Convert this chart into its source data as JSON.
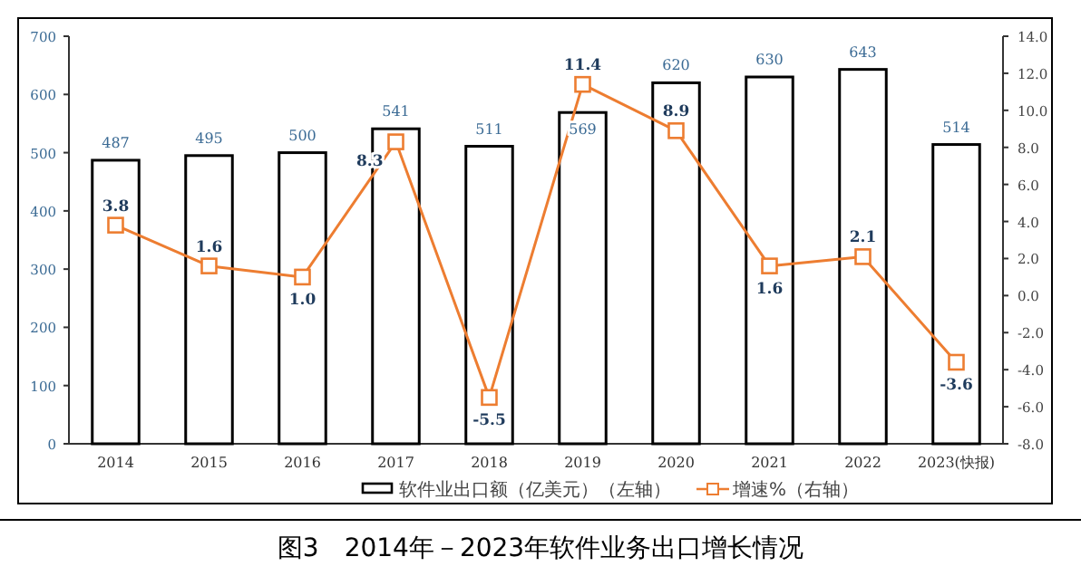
{
  "chart_data": {
    "type": "bar",
    "title": "图3　2014年－2023年软件业务出口增长情况",
    "categories": [
      "2014",
      "2015",
      "2016",
      "2017",
      "2018",
      "2019",
      "2020",
      "2021",
      "2022",
      "2023(快报)"
    ],
    "series": [
      {
        "name": "软件业出口额（亿美元）（左轴）",
        "color": "#ffffff",
        "values": [
          487,
          495,
          500,
          541,
          511,
          569,
          620,
          630,
          643,
          514
        ],
        "value_labels": [
          "487",
          "495",
          "500",
          "541",
          "511",
          "569",
          "620",
          "630",
          "643",
          "514"
        ]
      },
      {
        "name": "增速%（右轴）",
        "type": "line",
        "axis": "y2",
        "color": "#ed7d31",
        "marker": "square",
        "values": [
          3.8,
          1.6,
          1.0,
          8.3,
          -5.5,
          11.4,
          8.9,
          1.6,
          2.1,
          -3.6
        ],
        "value_labels": [
          "3.8",
          "1.6",
          "1.0",
          "8.3",
          "-5.5",
          "11.4",
          "8.9",
          "1.6",
          "2.1",
          "-3.6"
        ]
      }
    ],
    "ylim": [
      0,
      700
    ],
    "yticks": [
      0,
      100,
      200,
      300,
      400,
      500,
      600,
      700
    ],
    "y2lim": [
      -8,
      14
    ],
    "y2ticks": [
      {
        "value": -8,
        "label": "-8.0"
      },
      {
        "value": -6,
        "label": "-6.0"
      },
      {
        "value": -4,
        "label": "-4.0"
      },
      {
        "value": -2,
        "label": "-2.0"
      },
      {
        "value": 0,
        "label": "0.0"
      },
      {
        "value": 2,
        "label": "2.0"
      },
      {
        "value": 4,
        "label": "4.0"
      },
      {
        "value": 6,
        "label": "6.0"
      },
      {
        "value": 8,
        "label": "8.0"
      },
      {
        "value": 10,
        "label": "10.0"
      },
      {
        "value": 12,
        "label": "12.0"
      },
      {
        "value": 14,
        "label": "14.0"
      }
    ],
    "grid": false,
    "legend": "bottom"
  }
}
